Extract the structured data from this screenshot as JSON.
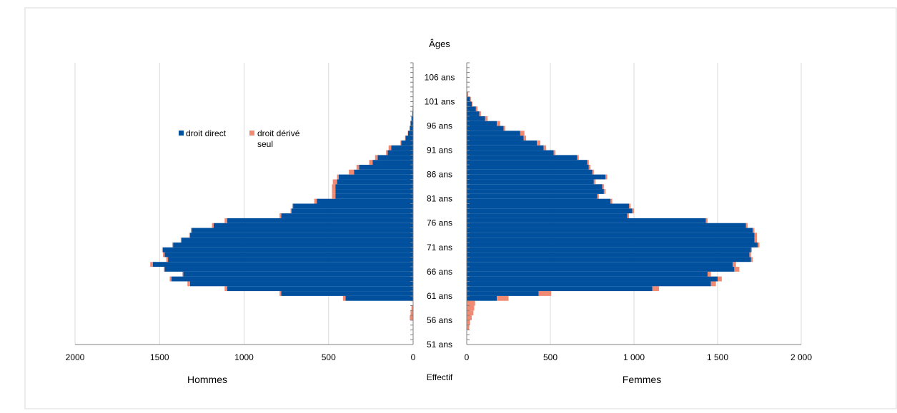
{
  "chart_data": {
    "type": "bar",
    "title": "",
    "ylabel": "Âges",
    "xlabel": "Effectif",
    "left_label": "Hommes",
    "right_label": "Femmes",
    "grid": true,
    "legend_placement": "top-left",
    "colors": {
      "direct": "#00509e",
      "derived": "#f08a72",
      "grid": "#d9d9d9",
      "axis": "#808080",
      "border": "#d9d9d9"
    },
    "series": [
      {
        "name": "droit direct"
      },
      {
        "name": "droit dérivé seul"
      }
    ],
    "age_range": [
      51,
      109
    ],
    "age_ticks": [
      "51 ans",
      "56 ans",
      "61 ans",
      "66 ans",
      "71 ans",
      "76 ans",
      "81 ans",
      "86 ans",
      "91 ans",
      "96 ans",
      "101 ans",
      "106 ans"
    ],
    "age_tick_values": [
      51,
      56,
      61,
      66,
      71,
      76,
      81,
      86,
      91,
      96,
      101,
      106
    ],
    "left_axis": {
      "range": [
        0,
        2000
      ],
      "ticks": [
        2000,
        1500,
        1000,
        500,
        0
      ],
      "tick_labels": [
        "2000",
        "1500",
        "1000",
        "500",
        "0"
      ]
    },
    "right_axis": {
      "range": [
        0,
        2000
      ],
      "ticks": [
        0,
        500,
        1000,
        1500,
        2000
      ],
      "tick_labels": [
        "0",
        "500",
        "1 000",
        "1 500",
        "2 000"
      ]
    },
    "ages": [
      54,
      55,
      56,
      57,
      58,
      59,
      60,
      61,
      62,
      63,
      64,
      65,
      66,
      67,
      68,
      69,
      70,
      71,
      72,
      73,
      74,
      75,
      76,
      77,
      78,
      79,
      80,
      81,
      82,
      83,
      84,
      85,
      86,
      87,
      88,
      89,
      90,
      91,
      92,
      93,
      94,
      95,
      96,
      97,
      98,
      99,
      100,
      101,
      102
    ],
    "men_direct": [
      0,
      0,
      0,
      0,
      0,
      0,
      400,
      780,
      1100,
      1320,
      1430,
      1360,
      1470,
      1540,
      1450,
      1470,
      1480,
      1420,
      1370,
      1320,
      1310,
      1180,
      1100,
      780,
      720,
      710,
      570,
      460,
      460,
      460,
      450,
      440,
      350,
      320,
      240,
      210,
      150,
      130,
      70,
      45,
      30,
      20,
      15,
      10,
      5,
      3,
      2,
      1,
      0
    ],
    "men_derived": [
      0,
      0,
      20,
      15,
      10,
      0,
      15,
      10,
      15,
      15,
      10,
      5,
      5,
      15,
      10,
      10,
      5,
      5,
      5,
      5,
      5,
      10,
      15,
      10,
      5,
      5,
      15,
      20,
      20,
      20,
      25,
      10,
      30,
      15,
      20,
      15,
      10,
      15,
      5,
      3,
      2,
      1,
      1,
      0,
      0,
      0,
      0,
      0,
      0
    ],
    "women_direct": [
      0,
      0,
      0,
      0,
      0,
      0,
      180,
      430,
      1110,
      1460,
      1500,
      1440,
      1600,
      1590,
      1700,
      1690,
      1700,
      1740,
      1720,
      1720,
      1710,
      1670,
      1430,
      960,
      990,
      970,
      860,
      780,
      820,
      810,
      760,
      830,
      750,
      730,
      720,
      660,
      520,
      460,
      420,
      340,
      320,
      220,
      180,
      110,
      75,
      55,
      30,
      20,
      5
    ],
    "women_derived": [
      15,
      20,
      30,
      40,
      45,
      50,
      70,
      75,
      40,
      30,
      25,
      20,
      30,
      20,
      10,
      10,
      5,
      10,
      15,
      15,
      10,
      10,
      10,
      10,
      10,
      10,
      10,
      10,
      10,
      10,
      10,
      10,
      10,
      10,
      10,
      10,
      10,
      15,
      20,
      15,
      25,
      10,
      20,
      15,
      10,
      10,
      5,
      5,
      3
    ]
  },
  "colors_note_free": true
}
